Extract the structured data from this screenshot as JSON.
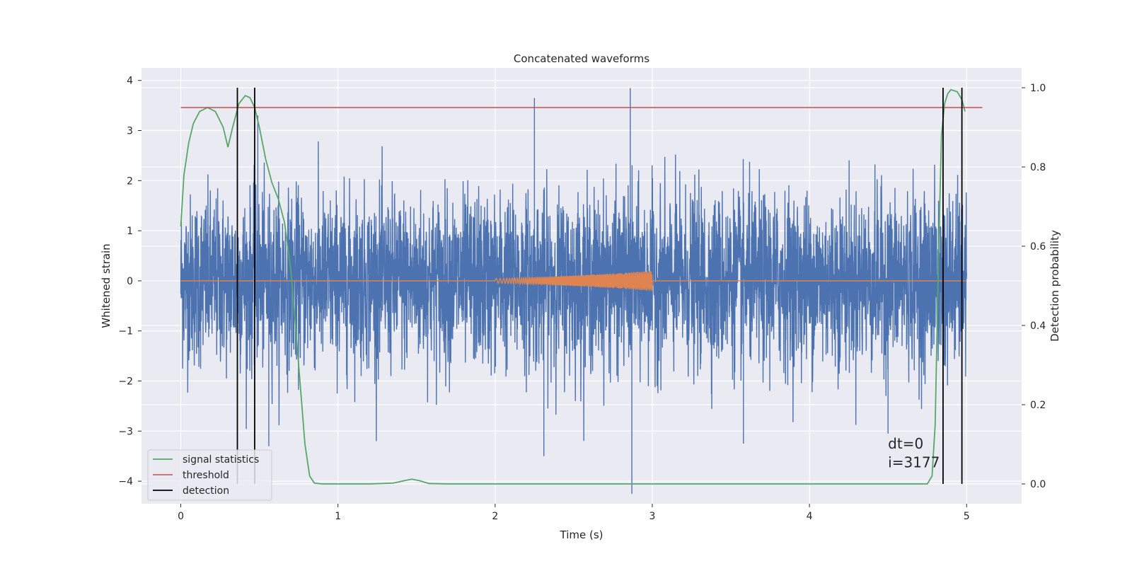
{
  "chart_data": {
    "type": "line",
    "title": "Concatenated waveforms",
    "xlabel": "Time (s)",
    "ylabel": "Whitened strain",
    "y2label": "Detection probability",
    "xlim": [
      -0.25,
      5.35
    ],
    "ylim": [
      -4.45,
      4.25
    ],
    "y2lim": [
      -0.05,
      1.05
    ],
    "xticks": [
      0,
      1,
      2,
      3,
      4,
      5
    ],
    "yticks": [
      -4,
      -3,
      -2,
      -1,
      0,
      1,
      2,
      3,
      4
    ],
    "y2ticks": [
      0.0,
      0.2,
      0.4,
      0.6,
      0.8,
      1.0
    ],
    "xtick_labels": [
      "0",
      "1",
      "2",
      "3",
      "4",
      "5"
    ],
    "ytick_labels": [
      "−4",
      "−3",
      "−2",
      "−1",
      "0",
      "1",
      "2",
      "3",
      "4"
    ],
    "y2tick_labels": [
      "0.0",
      "0.2",
      "0.4",
      "0.6",
      "0.8",
      "1.0"
    ],
    "grid": true,
    "background": "#eaeaf2",
    "legend": {
      "position": "lower-left",
      "entries": [
        {
          "label": "signal statistics",
          "color": "#55a868"
        },
        {
          "label": "threshold",
          "color": "#c44e52"
        },
        {
          "label": "detection",
          "color": "#000000"
        }
      ]
    },
    "series": [
      {
        "name": "whitened strain",
        "axis": "left",
        "color": "#4c72b0",
        "note_kind": "noise",
        "x_range": [
          0,
          5.0
        ],
        "typical_std": 0.85,
        "peaks": [
          {
            "x": 0.49,
            "y": 3.3
          },
          {
            "x": 2.25,
            "y": 3.65
          },
          {
            "x": 2.86,
            "y": 3.85
          },
          {
            "x": 2.87,
            "y": -4.25
          },
          {
            "x": 0.56,
            "y": -3.3
          },
          {
            "x": 3.58,
            "y": -3.25
          },
          {
            "x": 2.31,
            "y": -3.5
          },
          {
            "x": 4.5,
            "y": -3.05
          }
        ]
      },
      {
        "name": "injected waveform",
        "axis": "left",
        "color": "#dd8452",
        "x_range": [
          2.0,
          3.0
        ],
        "amplitude_end": 0.2
      },
      {
        "name": "signal statistics",
        "axis": "right",
        "color": "#55a868",
        "x": [
          0.0,
          0.02,
          0.05,
          0.08,
          0.12,
          0.17,
          0.22,
          0.27,
          0.3,
          0.33,
          0.37,
          0.41,
          0.44,
          0.47,
          0.5,
          0.54,
          0.58,
          0.62,
          0.66,
          0.7,
          0.73,
          0.76,
          0.79,
          0.82,
          0.85,
          0.9,
          1.0,
          1.2,
          1.35,
          1.42,
          1.47,
          1.52,
          1.58,
          1.7,
          2.0,
          3.0,
          4.0,
          4.6,
          4.75,
          4.78,
          4.8,
          4.82,
          4.84,
          4.86,
          4.88,
          4.9,
          4.94,
          4.97,
          4.99
        ],
        "y": [
          0.65,
          0.78,
          0.86,
          0.91,
          0.94,
          0.95,
          0.94,
          0.9,
          0.85,
          0.9,
          0.96,
          0.98,
          0.975,
          0.95,
          0.9,
          0.82,
          0.76,
          0.72,
          0.66,
          0.54,
          0.4,
          0.25,
          0.1,
          0.02,
          0.002,
          0.0,
          0.0,
          0.0,
          0.002,
          0.008,
          0.012,
          0.008,
          0.001,
          0.0,
          0.0,
          0.0,
          0.0,
          0.0,
          0.0,
          0.02,
          0.15,
          0.55,
          0.88,
          0.96,
          0.985,
          0.995,
          0.99,
          0.97,
          0.94
        ]
      },
      {
        "name": "threshold",
        "axis": "right",
        "color": "#c44e52",
        "x": [
          0.0,
          5.1
        ],
        "y": [
          0.95,
          0.95
        ]
      },
      {
        "name": "detection",
        "axis": "right",
        "color": "#000000",
        "vlines_x": [
          0.36,
          0.47,
          4.85,
          4.97
        ],
        "vline_range": [
          0.0,
          1.0
        ]
      }
    ],
    "annotations": [
      {
        "text": "dt=0",
        "x": 4.5,
        "y": -3.35
      },
      {
        "text": "i=3177",
        "x": 4.5,
        "y": -3.72
      }
    ]
  }
}
